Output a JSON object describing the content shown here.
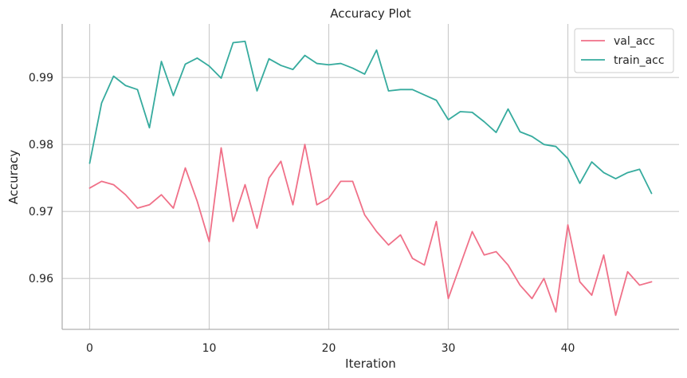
{
  "chart_data": {
    "type": "line",
    "title": "Accuracy Plot",
    "xlabel": "Iteration",
    "ylabel": "Accuracy",
    "xlim": [
      -2.3,
      49.3
    ],
    "ylim": [
      0.9524,
      0.998
    ],
    "xticks": [
      0,
      10,
      20,
      30,
      40
    ],
    "yticks": [
      0.96,
      0.97,
      0.98,
      0.99
    ],
    "ytick_labels": [
      "0.96",
      "0.97",
      "0.98",
      "0.99"
    ],
    "grid": true,
    "legend_position": "top-right",
    "series": [
      {
        "name": "val_acc",
        "color": "#f07088",
        "x": [
          0,
          1,
          2,
          3,
          4,
          5,
          6,
          7,
          8,
          9,
          10,
          11,
          12,
          13,
          14,
          15,
          16,
          17,
          18,
          19,
          20,
          21,
          22,
          23,
          24,
          25,
          26,
          27,
          28,
          29,
          30,
          31,
          32,
          33,
          34,
          35,
          36,
          37,
          38,
          39,
          40,
          41,
          42,
          43,
          44,
          45,
          46,
          47
        ],
        "values": [
          0.9735,
          0.9745,
          0.974,
          0.9725,
          0.9705,
          0.971,
          0.9725,
          0.9705,
          0.9765,
          0.9715,
          0.9655,
          0.9795,
          0.9685,
          0.974,
          0.9675,
          0.975,
          0.9775,
          0.971,
          0.98,
          0.971,
          0.972,
          0.9745,
          0.9745,
          0.9695,
          0.967,
          0.965,
          0.9665,
          0.963,
          0.962,
          0.9685,
          0.957,
          0.962,
          0.967,
          0.9635,
          0.964,
          0.962,
          0.959,
          0.957,
          0.96,
          0.955,
          0.968,
          0.9595,
          0.9575,
          0.9635,
          0.9545,
          0.961,
          0.959,
          0.9595
        ]
      },
      {
        "name": "train_acc",
        "color": "#36ab9e",
        "x": [
          0,
          1,
          2,
          3,
          4,
          5,
          6,
          7,
          8,
          9,
          10,
          11,
          12,
          13,
          14,
          15,
          16,
          17,
          18,
          19,
          20,
          21,
          22,
          23,
          24,
          25,
          26,
          27,
          28,
          29,
          30,
          31,
          32,
          33,
          34,
          35,
          36,
          37,
          38,
          39,
          40,
          41,
          42,
          43,
          44,
          45,
          46,
          47
        ],
        "values": [
          0.9772,
          0.9862,
          0.9902,
          0.9888,
          0.9882,
          0.9825,
          0.9924,
          0.9873,
          0.992,
          0.9929,
          0.9917,
          0.9899,
          0.9952,
          0.9954,
          0.988,
          0.9928,
          0.9918,
          0.9912,
          0.9933,
          0.9921,
          0.9919,
          0.9921,
          0.9914,
          0.9905,
          0.9941,
          0.988,
          0.9882,
          0.9882,
          0.9874,
          0.9866,
          0.9837,
          0.9849,
          0.9848,
          0.9834,
          0.9818,
          0.9853,
          0.9819,
          0.9812,
          0.98,
          0.9797,
          0.9779,
          0.9742,
          0.9774,
          0.9758,
          0.9749,
          0.9758,
          0.9763,
          0.9727
        ]
      }
    ]
  }
}
